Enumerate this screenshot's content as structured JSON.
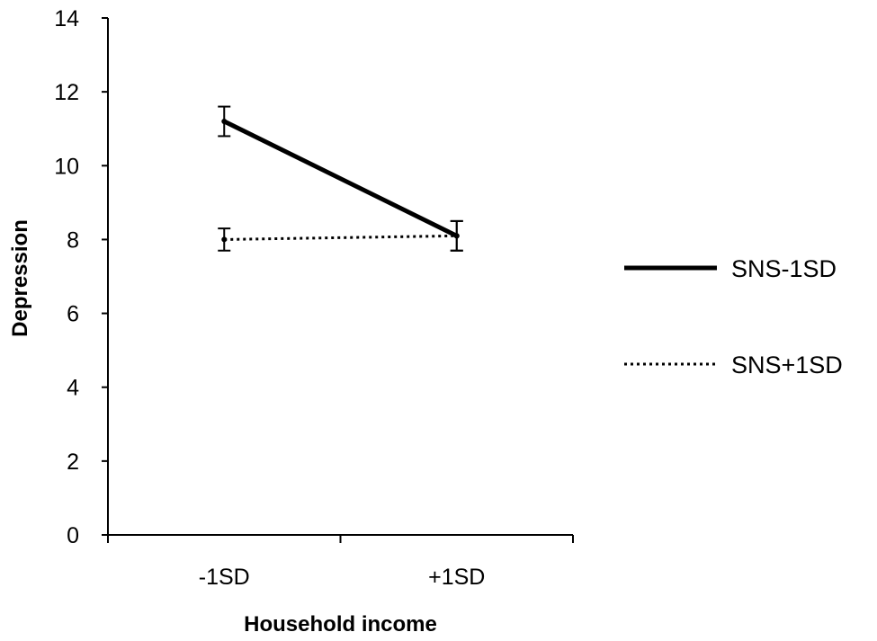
{
  "chart_data": {
    "type": "line",
    "title": "",
    "xlabel": "Household income",
    "ylabel": "Depression",
    "categories": [
      "-1SD",
      "+1SD"
    ],
    "ylim": [
      0,
      14
    ],
    "yticks": [
      "0",
      "2",
      "4",
      "6",
      "8",
      "10",
      "12",
      "14"
    ],
    "grid": false,
    "legend_position": "right",
    "series": [
      {
        "name": "SNS-1SD",
        "values": [
          11.2,
          8.1
        ],
        "error": [
          0.4,
          0.4
        ],
        "line_style": "solid",
        "color": "#000000"
      },
      {
        "name": "SNS+1SD",
        "values": [
          8.0,
          8.1
        ],
        "error": [
          0.3,
          0.4
        ],
        "line_style": "dotted",
        "color": "#000000"
      }
    ]
  }
}
